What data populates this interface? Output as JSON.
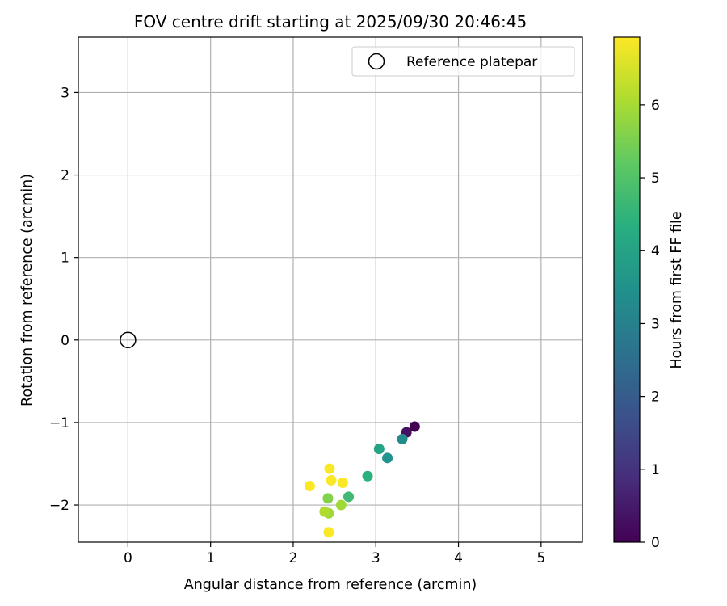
{
  "chart_data": {
    "type": "scatter",
    "title": "FOV centre drift starting at 2025/09/30 20:46:45",
    "xlabel": "Angular distance from reference (arcmin)",
    "ylabel": "Rotation from reference (arcmin)",
    "xlim": [
      -0.6,
      5.5
    ],
    "ylim": [
      -2.45,
      3.67
    ],
    "xticks": [
      0,
      1,
      2,
      3,
      4,
      5
    ],
    "yticks": [
      -2,
      -1,
      0,
      1,
      2,
      3
    ],
    "grid": true,
    "legend": {
      "placement": "top-right",
      "label": "Reference platepar"
    },
    "reference_point": {
      "x": 0,
      "y": 0
    },
    "colorbar": {
      "label": "Hours from first FF file",
      "range": [
        0,
        6.93
      ],
      "ticks": [
        0,
        1,
        2,
        3,
        4,
        5,
        6
      ],
      "colormap": "viridis"
    },
    "points": [
      {
        "x": 3.47,
        "y": -1.05,
        "hours": 0.0
      },
      {
        "x": 3.37,
        "y": -1.12,
        "hours": 0.3
      },
      {
        "x": 3.32,
        "y": -1.2,
        "hours": 3.3
      },
      {
        "x": 3.14,
        "y": -1.43,
        "hours": 3.5
      },
      {
        "x": 3.04,
        "y": -1.32,
        "hours": 4.0
      },
      {
        "x": 2.9,
        "y": -1.65,
        "hours": 4.4
      },
      {
        "x": 2.67,
        "y": -1.9,
        "hours": 4.7
      },
      {
        "x": 2.42,
        "y": -1.92,
        "hours": 5.6
      },
      {
        "x": 2.58,
        "y": -2.0,
        "hours": 5.9
      },
      {
        "x": 2.43,
        "y": -2.1,
        "hours": 5.9
      },
      {
        "x": 2.38,
        "y": -2.08,
        "hours": 6.1
      },
      {
        "x": 2.43,
        "y": -2.33,
        "hours": 6.9
      },
      {
        "x": 2.2,
        "y": -1.77,
        "hours": 6.9
      },
      {
        "x": 2.44,
        "y": -1.56,
        "hours": 6.9
      },
      {
        "x": 2.46,
        "y": -1.7,
        "hours": 6.9
      },
      {
        "x": 2.6,
        "y": -1.73,
        "hours": 6.9
      }
    ]
  }
}
